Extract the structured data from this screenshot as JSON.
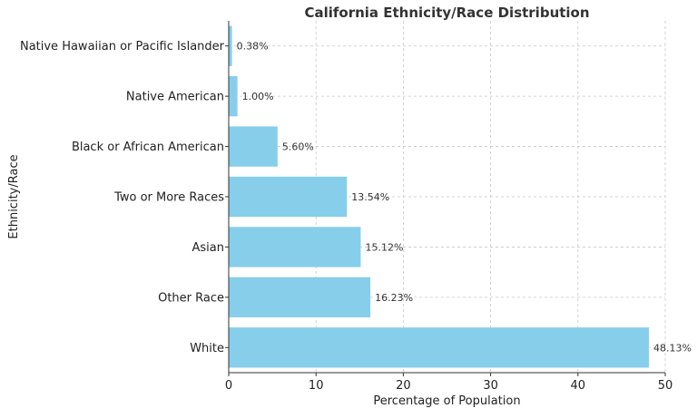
{
  "chart_data": {
    "type": "bar",
    "orientation": "horizontal",
    "title": "California Ethnicity/Race Distribution",
    "xlabel": "Percentage of Population",
    "ylabel": "Ethnicity/Race",
    "xlim": [
      0,
      50
    ],
    "xticks": [
      "0",
      "10",
      "20",
      "30",
      "40",
      "50"
    ],
    "grid": true,
    "categories": [
      "White",
      "Other Race",
      "Asian",
      "Two or More Races",
      "Black or African American",
      "Native American",
      "Native Hawaiian or Pacific Islander"
    ],
    "values": [
      48.13,
      16.23,
      15.12,
      13.54,
      5.6,
      1.0,
      0.38
    ],
    "value_labels": [
      "48.13%",
      "16.23%",
      "15.12%",
      "13.54%",
      "5.60%",
      "1.00%",
      "0.38%"
    ],
    "bar_color": "#87ceeb"
  }
}
